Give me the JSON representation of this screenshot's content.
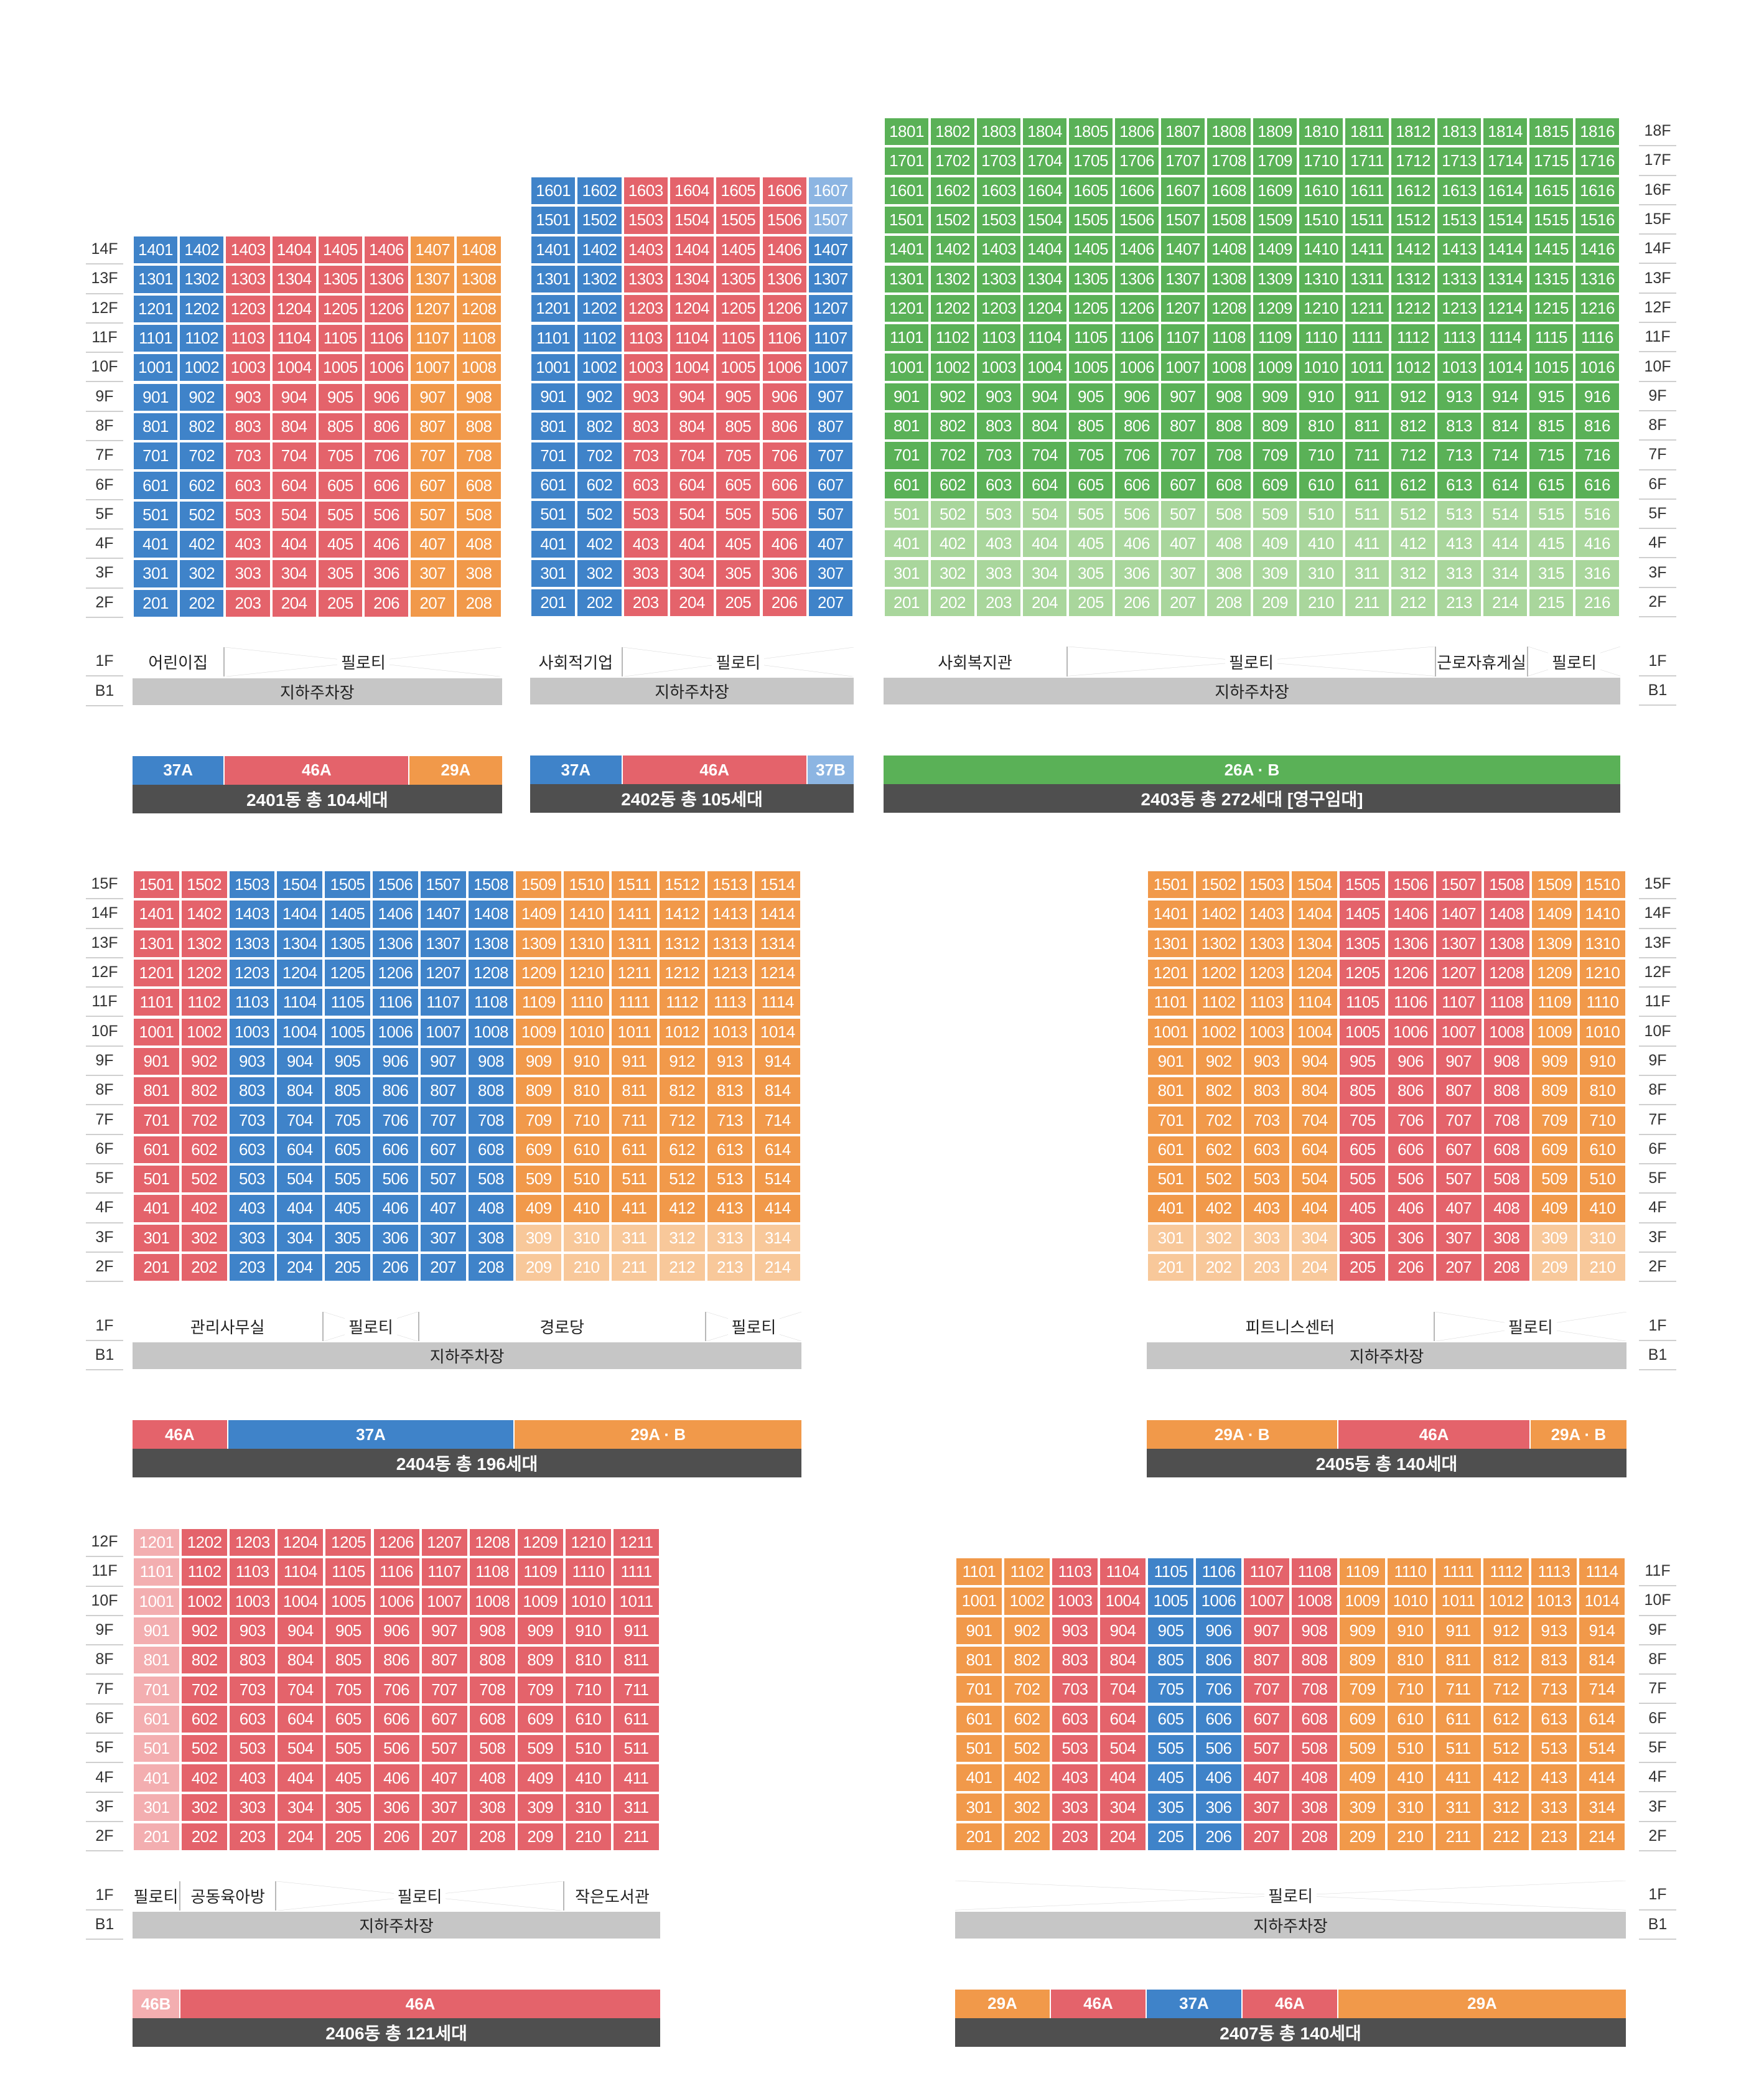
{
  "colors": {
    "blue": "#3f83c9",
    "red": "#e4636b",
    "orange": "#f1994a",
    "green": "#5ab157",
    "light_green": "#a9d69c",
    "light_red": "#f3aeb0",
    "light_orange": "#f8c89a",
    "light_blue": "#8cb5e2",
    "grey": "#c6c6c6",
    "dark": "#4f4f4f"
  },
  "buildings": [
    {
      "id": "2401",
      "total_label": "2401동 총 104세대",
      "floors": 14,
      "units_per_floor": 8,
      "label_side": "left",
      "column_colors": [
        "blue",
        "blue",
        "red",
        "red",
        "red",
        "red",
        "orange",
        "orange"
      ],
      "top_floor_units": [],
      "light_units": [],
      "floor1": [
        {
          "label": "어린이집",
          "span": 2,
          "kind": "amenity"
        },
        {
          "label": "필로티",
          "span": 6,
          "kind": "piloti"
        }
      ],
      "parking_label": "지하주차장",
      "type_legend": [
        {
          "label": "37A",
          "span": 2,
          "color": "blue"
        },
        {
          "label": "46A",
          "span": 4,
          "color": "red"
        },
        {
          "label": "29A",
          "span": 2,
          "color": "orange"
        }
      ]
    },
    {
      "id": "2402",
      "total_label": "2402동 총 105세대",
      "floors": 16,
      "units_per_floor": 7,
      "label_side": "none",
      "column_colors": [
        "blue",
        "blue",
        "red",
        "red",
        "red",
        "red",
        "blue"
      ],
      "top_floor_units": [],
      "light_units": [],
      "column_overrides": [
        {
          "col": 7,
          "floors": [
            15,
            16
          ],
          "color": "light_blue"
        }
      ],
      "floor1": [
        {
          "label": "사회적기업",
          "span": 2,
          "kind": "amenity"
        },
        {
          "label": "필로티",
          "span": 5,
          "kind": "piloti"
        }
      ],
      "parking_label": "지하주차장",
      "type_legend": [
        {
          "label": "37A",
          "span": 2,
          "color": "blue"
        },
        {
          "label": "46A",
          "span": 4,
          "color": "red"
        },
        {
          "label": "37B",
          "span": 1,
          "color": "light_blue"
        }
      ]
    },
    {
      "id": "2403",
      "total_label": "2403동 총 272세대 [영구임대]",
      "floors": 18,
      "units_per_floor": 16,
      "label_side": "right",
      "column_colors": [
        "green",
        "green",
        "green",
        "green",
        "green",
        "green",
        "green",
        "green",
        "green",
        "green",
        "green",
        "green",
        "green",
        "green",
        "green",
        "green"
      ],
      "light_floors_color": "light_green",
      "light_floors": [
        2,
        3,
        4,
        5
      ],
      "floor1": [
        {
          "label": "사회복지관",
          "span": 4,
          "kind": "amenity"
        },
        {
          "label": "필로티",
          "span": 8,
          "kind": "piloti"
        },
        {
          "label": "근로자휴게실",
          "span": 2,
          "kind": "amenity"
        },
        {
          "label": "필로티",
          "span": 2,
          "kind": "piloti"
        }
      ],
      "parking_label": "지하주차장",
      "type_legend": [
        {
          "label": "26A · B",
          "span": 16,
          "color": "green"
        }
      ]
    },
    {
      "id": "2404",
      "total_label": "2404동 총 196세대",
      "floors": 15,
      "units_per_floor": 14,
      "label_side": "left",
      "column_colors": [
        "red",
        "red",
        "blue",
        "blue",
        "blue",
        "blue",
        "blue",
        "blue",
        "orange",
        "orange",
        "orange",
        "orange",
        "orange",
        "orange"
      ],
      "column_overrides": [
        {
          "cols": [
            9,
            10,
            11,
            12,
            13,
            14
          ],
          "floors": [
            2,
            3
          ],
          "color": "light_orange"
        }
      ],
      "floor1": [
        {
          "label": "관리사무실",
          "span": 4,
          "kind": "amenity"
        },
        {
          "label": "필로티",
          "span": 2,
          "kind": "piloti"
        },
        {
          "label": "경로당",
          "span": 6,
          "kind": "amenity"
        },
        {
          "label": "필로티",
          "span": 2,
          "kind": "piloti"
        }
      ],
      "parking_label": "지하주차장",
      "type_legend": [
        {
          "label": "46A",
          "span": 2,
          "color": "red"
        },
        {
          "label": "37A",
          "span": 6,
          "color": "blue"
        },
        {
          "label": "29A · B",
          "span": 6,
          "color": "orange"
        }
      ]
    },
    {
      "id": "2405",
      "total_label": "2405동 총 140세대",
      "floors": 15,
      "units_per_floor": 10,
      "label_side": "right",
      "column_colors": [
        "orange",
        "orange",
        "orange",
        "orange",
        "red",
        "red",
        "red",
        "red",
        "orange",
        "orange"
      ],
      "column_overrides": [
        {
          "cols": [
            1,
            2,
            3,
            4
          ],
          "floors": [
            2,
            3
          ],
          "color": "light_orange"
        },
        {
          "cols": [
            9,
            10
          ],
          "floors": [
            2,
            3
          ],
          "color": "light_orange"
        }
      ],
      "floor1": [
        {
          "label": "피트니스센터",
          "span": 6,
          "kind": "amenity"
        },
        {
          "label": "필로티",
          "span": 4,
          "kind": "piloti"
        }
      ],
      "parking_label": "지하주차장",
      "type_legend": [
        {
          "label": "29A · B",
          "span": 4,
          "color": "orange"
        },
        {
          "label": "46A",
          "span": 4,
          "color": "red"
        },
        {
          "label": "29A · B",
          "span": 2,
          "color": "orange"
        }
      ]
    },
    {
      "id": "2406",
      "total_label": "2406동 총 121세대",
      "floors": 12,
      "units_per_floor": 11,
      "label_side": "left",
      "column_colors": [
        "light_red",
        "red",
        "red",
        "red",
        "red",
        "red",
        "red",
        "red",
        "red",
        "red",
        "red"
      ],
      "floor1": [
        {
          "label": "필로티",
          "span": 1,
          "kind": "amenity"
        },
        {
          "label": "공동육아방",
          "span": 2,
          "kind": "amenity"
        },
        {
          "label": "필로티",
          "span": 6,
          "kind": "piloti"
        },
        {
          "label": "작은도서관",
          "span": 2,
          "kind": "amenity"
        }
      ],
      "parking_label": "지하주차장",
      "type_legend": [
        {
          "label": "46B",
          "span": 1,
          "color": "light_red"
        },
        {
          "label": "46A",
          "span": 10,
          "color": "red"
        }
      ]
    },
    {
      "id": "2407",
      "total_label": "2407동 총 140세대",
      "floors": 11,
      "units_per_floor": 14,
      "label_side": "right",
      "column_colors": [
        "orange",
        "orange",
        "red",
        "red",
        "blue",
        "blue",
        "red",
        "red",
        "orange",
        "orange",
        "orange",
        "orange",
        "orange",
        "orange"
      ],
      "floor1": [
        {
          "label": "필로티",
          "span": 14,
          "kind": "piloti"
        }
      ],
      "parking_label": "지하주차장",
      "type_legend": [
        {
          "label": "29A",
          "span": 2,
          "color": "orange"
        },
        {
          "label": "46A",
          "span": 2,
          "color": "red"
        },
        {
          "label": "37A",
          "span": 2,
          "color": "blue"
        },
        {
          "label": "46A",
          "span": 2,
          "color": "red"
        },
        {
          "label": "29A",
          "span": 6,
          "color": "orange"
        }
      ]
    }
  ]
}
